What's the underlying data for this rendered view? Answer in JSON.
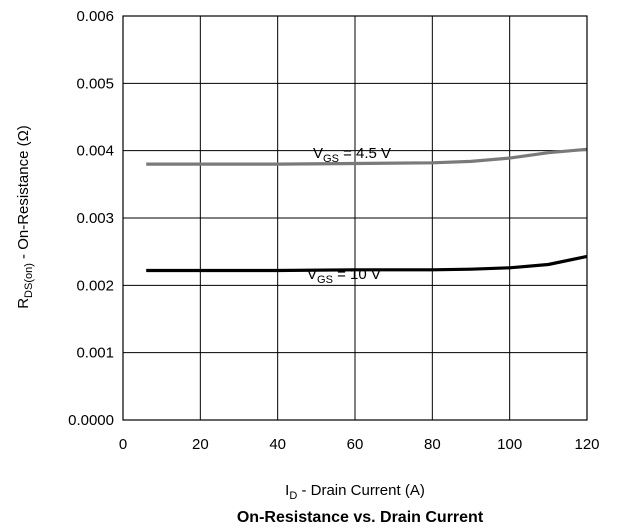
{
  "chart_data": {
    "type": "line",
    "title": "On-Resistance vs. Drain Current",
    "xlabel": {
      "main": "I",
      "sub": "D",
      "rest": " - Drain Current (A)"
    },
    "ylabel": {
      "main": "R",
      "sub": "DS(on)",
      "rest": " - On-Resistance (Ω)"
    },
    "xlim": [
      0,
      120
    ],
    "ylim": [
      0,
      0.006
    ],
    "x_ticks": [
      "0",
      "20",
      "40",
      "60",
      "80",
      "100",
      "120"
    ],
    "y_ticks": [
      "0.0000",
      "0.001",
      "0.002",
      "0.003",
      "0.004",
      "0.005",
      "0.006"
    ],
    "grid": true,
    "series": [
      {
        "label": {
          "main": "V",
          "sub": "GS",
          "rest": " = 4.5 V"
        },
        "color": "#7a7a7a",
        "x": [
          6,
          20,
          40,
          60,
          80,
          90,
          100,
          110,
          120
        ],
        "y": [
          0.0038,
          0.0038,
          0.0038,
          0.00381,
          0.00382,
          0.00384,
          0.00389,
          0.00397,
          0.00402
        ]
      },
      {
        "label": {
          "main": "V",
          "sub": "GS",
          "rest": " = 10 V"
        },
        "color": "#000000",
        "x": [
          6,
          20,
          40,
          60,
          80,
          90,
          100,
          110,
          120
        ],
        "y": [
          0.00222,
          0.00222,
          0.00222,
          0.00223,
          0.00223,
          0.00224,
          0.00226,
          0.00231,
          0.00243
        ]
      }
    ]
  }
}
